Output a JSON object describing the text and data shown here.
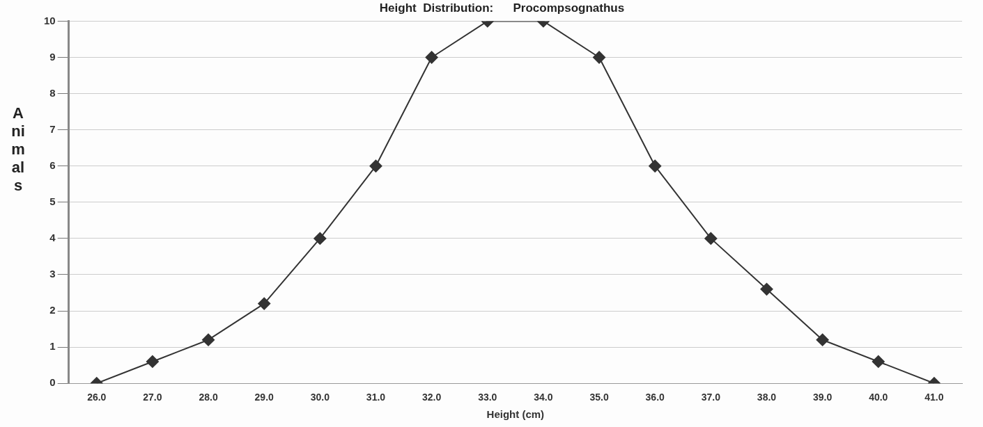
{
  "chart_data": {
    "type": "line",
    "title": "Height  Distribution:      Procompsognathus",
    "xlabel": "Height (cm)",
    "ylabel": "Animals",
    "categories": [
      "26.0",
      "27.0",
      "28.0",
      "29.0",
      "30.0",
      "31.0",
      "32.0",
      "33.0",
      "34.0",
      "35.0",
      "36.0",
      "37.0",
      "38.0",
      "39.0",
      "40.0",
      "41.0"
    ],
    "series": [
      {
        "color": "#333333",
        "values": [
          0,
          0.6,
          1.2,
          2.2,
          4,
          6,
          9,
          10,
          10,
          9,
          6,
          4,
          2.6,
          1.2,
          0.6,
          0
        ]
      }
    ],
    "ylim": [
      0,
      10
    ],
    "yticks": [
      0,
      1,
      2,
      3,
      4,
      5,
      6,
      7,
      8,
      9,
      10
    ],
    "grid": "y",
    "legend": false,
    "marker": "diamond",
    "line_style": "solid"
  }
}
